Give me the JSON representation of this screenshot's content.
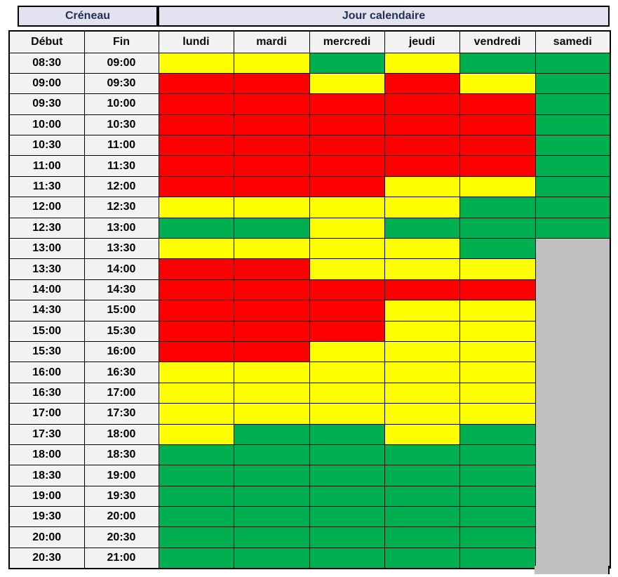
{
  "table": {
    "header_creneau": "Créneau",
    "header_jour": "Jour calendaire",
    "col_debut": "Début",
    "col_fin": "Fin",
    "days": [
      "lundi",
      "mardi",
      "mercredi",
      "jeudi",
      "vendredi",
      "samedi"
    ],
    "colors": {
      "Y": "#FFFF00",
      "R": "#FF0000",
      "G": "#00B050",
      "X": "#C0C0C0",
      "header_bg": "#E2E2F0",
      "header_text": "#1F3050",
      "time_bg": "#F2F2F2",
      "border": "#000000"
    },
    "rows": [
      {
        "start": "08:30",
        "end": "09:00",
        "cells": [
          "Y",
          "Y",
          "G",
          "Y",
          "G",
          "G"
        ]
      },
      {
        "start": "09:00",
        "end": "09:30",
        "cells": [
          "R",
          "R",
          "Y",
          "R",
          "Y",
          "G"
        ]
      },
      {
        "start": "09:30",
        "end": "10:00",
        "cells": [
          "R",
          "R",
          "R",
          "R",
          "R",
          "G"
        ]
      },
      {
        "start": "10:00",
        "end": "10:30",
        "cells": [
          "R",
          "R",
          "R",
          "R",
          "R",
          "G"
        ]
      },
      {
        "start": "10:30",
        "end": "11:00",
        "cells": [
          "R",
          "R",
          "R",
          "R",
          "R",
          "G"
        ]
      },
      {
        "start": "11:00",
        "end": "11:30",
        "cells": [
          "R",
          "R",
          "R",
          "R",
          "R",
          "G"
        ]
      },
      {
        "start": "11:30",
        "end": "12:00",
        "cells": [
          "R",
          "R",
          "R",
          "Y",
          "Y",
          "G"
        ]
      },
      {
        "start": "12:00",
        "end": "12:30",
        "cells": [
          "Y",
          "Y",
          "Y",
          "Y",
          "G",
          "G"
        ]
      },
      {
        "start": "12:30",
        "end": "13:00",
        "cells": [
          "G",
          "G",
          "Y",
          "G",
          "G",
          "G"
        ]
      },
      {
        "start": "13:00",
        "end": "13:30",
        "cells": [
          "Y",
          "Y",
          "Y",
          "Y",
          "G",
          "X"
        ]
      },
      {
        "start": "13:30",
        "end": "14:00",
        "cells": [
          "R",
          "R",
          "Y",
          "Y",
          "Y",
          "X"
        ]
      },
      {
        "start": "14:00",
        "end": "14:30",
        "cells": [
          "R",
          "R",
          "R",
          "R",
          "R",
          "X"
        ]
      },
      {
        "start": "14:30",
        "end": "15:00",
        "cells": [
          "R",
          "R",
          "R",
          "Y",
          "Y",
          "X"
        ]
      },
      {
        "start": "15:00",
        "end": "15:30",
        "cells": [
          "R",
          "R",
          "R",
          "Y",
          "Y",
          "X"
        ]
      },
      {
        "start": "15:30",
        "end": "16:00",
        "cells": [
          "R",
          "R",
          "Y",
          "Y",
          "Y",
          "X"
        ]
      },
      {
        "start": "16:00",
        "end": "16:30",
        "cells": [
          "Y",
          "Y",
          "Y",
          "Y",
          "Y",
          "X"
        ]
      },
      {
        "start": "16:30",
        "end": "17:00",
        "cells": [
          "Y",
          "Y",
          "Y",
          "Y",
          "Y",
          "X"
        ]
      },
      {
        "start": "17:00",
        "end": "17:30",
        "cells": [
          "Y",
          "Y",
          "Y",
          "Y",
          "Y",
          "X"
        ]
      },
      {
        "start": "17:30",
        "end": "18:00",
        "cells": [
          "Y",
          "G",
          "G",
          "Y",
          "G",
          "X"
        ]
      },
      {
        "start": "18:00",
        "end": "18:30",
        "cells": [
          "G",
          "G",
          "G",
          "G",
          "G",
          "X"
        ]
      },
      {
        "start": "18:30",
        "end": "19:00",
        "cells": [
          "G",
          "G",
          "G",
          "G",
          "G",
          "X"
        ]
      },
      {
        "start": "19:00",
        "end": "19:30",
        "cells": [
          "G",
          "G",
          "G",
          "G",
          "G",
          "X"
        ]
      },
      {
        "start": "19:30",
        "end": "20:00",
        "cells": [
          "G",
          "G",
          "G",
          "G",
          "G",
          "X"
        ]
      },
      {
        "start": "20:00",
        "end": "20:30",
        "cells": [
          "G",
          "G",
          "G",
          "G",
          "G",
          "X"
        ]
      },
      {
        "start": "20:30",
        "end": "21:00",
        "cells": [
          "G",
          "G",
          "G",
          "G",
          "G",
          "X"
        ]
      }
    ]
  }
}
